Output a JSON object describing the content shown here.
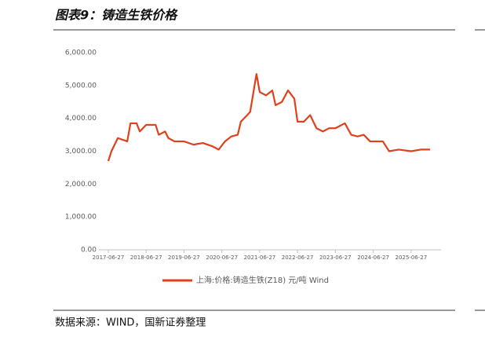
{
  "title": "图表9：铸造生铁价格",
  "source": "数据来源：WIND，国新证券整理",
  "chart_data": {
    "type": "line",
    "x": [
      "2017-06-27",
      "2017-07-27",
      "2017-09-27",
      "2017-12-27",
      "2018-01-27",
      "2018-03-27",
      "2018-04-27",
      "2018-06-27",
      "2018-09-27",
      "2018-10-27",
      "2018-12-27",
      "2019-01-27",
      "2019-03-27",
      "2019-06-27",
      "2019-09-27",
      "2019-12-27",
      "2020-03-27",
      "2020-05-27",
      "2020-07-27",
      "2020-09-27",
      "2020-11-27",
      "2020-12-27",
      "2021-02-27",
      "2021-03-27",
      "2021-05-27",
      "2021-06-27",
      "2021-08-27",
      "2021-10-27",
      "2021-11-27",
      "2022-01-27",
      "2022-03-27",
      "2022-05-27",
      "2022-06-27",
      "2022-08-27",
      "2022-10-27",
      "2022-12-27",
      "2023-02-27",
      "2023-04-27",
      "2023-06-27",
      "2023-09-27",
      "2023-11-27",
      "2024-01-27",
      "2024-03-27",
      "2024-05-27",
      "2024-09-27",
      "2024-11-27",
      "2025-02-27",
      "2025-06-27",
      "2025-09-27",
      "2025-12-27"
    ],
    "series": [
      {
        "name": "上海:价格:铸造生铁(Z18) 元/吨 Wind",
        "color": "#e0401c",
        "values": [
          2700,
          3000,
          3400,
          3300,
          3850,
          3850,
          3600,
          3800,
          3800,
          3500,
          3600,
          3400,
          3300,
          3300,
          3200,
          3250,
          3150,
          3050,
          3300,
          3450,
          3500,
          3900,
          4100,
          4200,
          5350,
          4800,
          4700,
          4850,
          4400,
          4500,
          4850,
          4600,
          3900,
          3900,
          4100,
          3700,
          3600,
          3700,
          3700,
          3850,
          3500,
          3450,
          3500,
          3300,
          3300,
          3000,
          3050,
          3000,
          3050,
          3050
        ]
      }
    ],
    "xlim": [
      "2017-06-27",
      "2025-12-27"
    ],
    "xticks": [
      "2017-06-27",
      "2018-06-27",
      "2019-06-27",
      "2020-06-27",
      "2021-06-27",
      "2022-06-27",
      "2023-06-27",
      "2024-06-27",
      "2025-06-27"
    ],
    "ylim": [
      0,
      6000
    ],
    "yticks": [
      {
        "value": 0,
        "label": "0.00"
      },
      {
        "value": 1000,
        "label": "1,000.00"
      },
      {
        "value": 2000,
        "label": "2,000.00"
      },
      {
        "value": 3000,
        "label": "3,000.00"
      },
      {
        "value": 4000,
        "label": "4,000.00"
      },
      {
        "value": 5000,
        "label": "5,000.00"
      },
      {
        "value": 6000,
        "label": "6,000.00"
      }
    ],
    "legend": "bottom"
  }
}
